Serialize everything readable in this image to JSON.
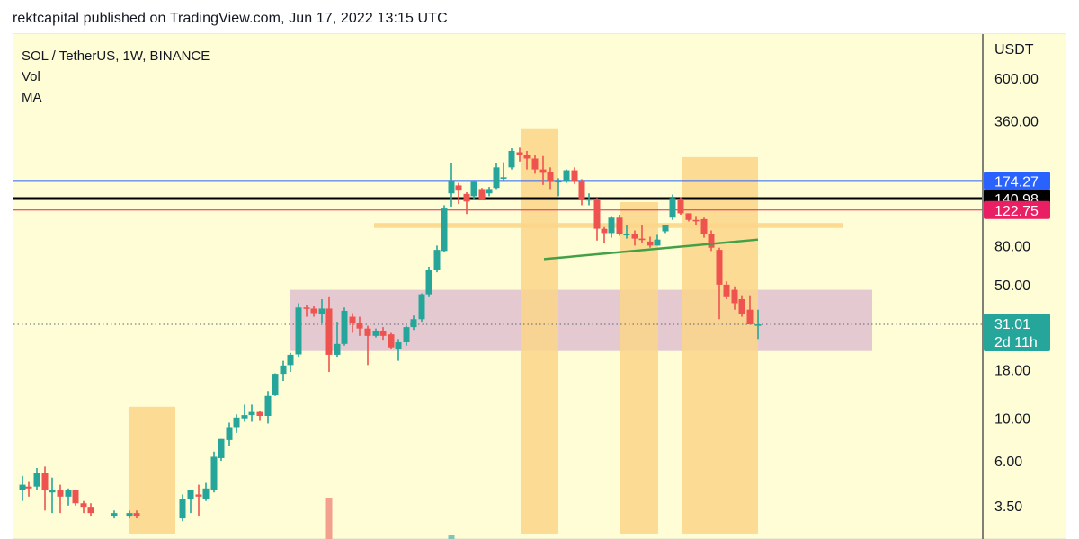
{
  "header": {
    "published": "rektcapital published on TradingView.com, Jun 17, 2022 13:15 UTC"
  },
  "legend": {
    "symbol": "SOL / TetherUS, 1W, BINANCE",
    "indicators": [
      "Vol",
      "MA"
    ]
  },
  "price_axis": {
    "currency": "USDT",
    "ticks": [
      {
        "label": "600.00",
        "value": 600
      },
      {
        "label": "360.00",
        "value": 360
      },
      {
        "label": "80.00",
        "value": 80
      },
      {
        "label": "50.00",
        "value": 50
      },
      {
        "label": "18.00",
        "value": 18
      },
      {
        "label": "10.00",
        "value": 10
      },
      {
        "label": "6.00",
        "value": 6
      },
      {
        "label": "3.50",
        "value": 3.5
      }
    ],
    "badges": [
      {
        "label": "174.27",
        "value": 174.27,
        "color": "#2962ff"
      },
      {
        "label": "140.98",
        "value": 140.98,
        "color": "#000000"
      },
      {
        "label": "122.75",
        "value": 122.75,
        "color": "#e91e63"
      }
    ],
    "last_price": {
      "label": "31.01",
      "countdown": "2d 11h",
      "value": 31.01,
      "color": "#26a69a"
    }
  },
  "colors": {
    "up": "#26a69a",
    "down": "#ef5350",
    "background": "#fffdd5",
    "highlight_zone": "#fcd68a",
    "range_zone": "#e0c0d0",
    "trendline": "#43a047"
  },
  "chart_data": {
    "type": "candlestick",
    "title": "SOL / TetherUS, 1W, BINANCE",
    "ylabel": "USDT",
    "yscale": "log",
    "ylim": [
      3.0,
      900
    ],
    "grid": false,
    "horizontal_lines": [
      {
        "value": 174.27,
        "color": "#2962ff",
        "width": 2
      },
      {
        "value": 140.98,
        "color": "#000000",
        "width": 3
      },
      {
        "value": 122.75,
        "color": "#e91e63",
        "width": 1
      }
    ],
    "zones": [
      {
        "type": "range",
        "x0": 323,
        "x1": 970,
        "top": 47,
        "bottom": 22.5,
        "color": "#e0c0d0"
      },
      {
        "type": "band",
        "x0": 416,
        "x1": 937,
        "top": 105,
        "bottom": 99,
        "color": "#fcd68a"
      },
      {
        "type": "highlight",
        "x0": 144,
        "x1": 195,
        "top": 11.5,
        "bottom": 2.5
      },
      {
        "type": "highlight",
        "x0": 579,
        "x1": 621,
        "top": 325,
        "bottom": 2.5
      },
      {
        "type": "highlight",
        "x0": 689,
        "x1": 732,
        "top": 135,
        "bottom": 2.5
      },
      {
        "type": "highlight",
        "x0": 758,
        "x1": 843,
        "top": 232,
        "bottom": 2.5
      }
    ],
    "trendline": {
      "x0": 605,
      "p0": 68,
      "x1": 843,
      "p1": 86,
      "color": "#43a047"
    },
    "last_price_line": 31.01,
    "candles": [
      {
        "x": 25,
        "o": 4.2,
        "h": 5.0,
        "l": 3.7,
        "c": 4.5
      },
      {
        "x": 32,
        "o": 4.4,
        "h": 4.7,
        "l": 3.9,
        "c": 4.3
      },
      {
        "x": 41,
        "o": 4.4,
        "h": 5.5,
        "l": 4.2,
        "c": 5.2
      },
      {
        "x": 50,
        "o": 5.2,
        "h": 5.6,
        "l": 3.3,
        "c": 4.2
      },
      {
        "x": 58,
        "o": 4.1,
        "h": 4.9,
        "l": 3.2,
        "c": 4.2
      },
      {
        "x": 67,
        "o": 4.2,
        "h": 4.5,
        "l": 3.2,
        "c": 3.9
      },
      {
        "x": 76,
        "o": 3.9,
        "h": 4.3,
        "l": 3.5,
        "c": 4.2
      },
      {
        "x": 84,
        "o": 4.2,
        "h": 4.2,
        "l": 3.5,
        "c": 3.6
      },
      {
        "x": 93,
        "o": 3.6,
        "h": 3.7,
        "l": 3.2,
        "c": 3.45
      },
      {
        "x": 101,
        "o": 3.45,
        "h": 3.6,
        "l": 3.1,
        "c": 3.2
      },
      {
        "x": 127,
        "o": 3.1,
        "h": 3.3,
        "l": 3.0,
        "c": 3.2
      },
      {
        "x": 144,
        "o": 3.1,
        "h": 3.3,
        "l": 3.0,
        "c": 3.2
      },
      {
        "x": 152,
        "o": 3.2,
        "h": 3.3,
        "l": 3.0,
        "c": 3.1
      },
      {
        "x": 203,
        "o": 3.0,
        "h": 4.0,
        "l": 2.9,
        "c": 3.8
      },
      {
        "x": 212,
        "o": 3.8,
        "h": 4.2,
        "l": 3.2,
        "c": 4.2
      },
      {
        "x": 221,
        "o": 4.0,
        "h": 4.5,
        "l": 3.1,
        "c": 3.9
      },
      {
        "x": 229,
        "o": 3.8,
        "h": 4.6,
        "l": 3.7,
        "c": 4.3
      },
      {
        "x": 238,
        "o": 4.2,
        "h": 6.7,
        "l": 4.1,
        "c": 6.3
      },
      {
        "x": 246,
        "o": 6.2,
        "h": 7.8,
        "l": 6.0,
        "c": 7.8
      },
      {
        "x": 255,
        "o": 7.7,
        "h": 9.5,
        "l": 7.2,
        "c": 9.0
      },
      {
        "x": 263,
        "o": 9.0,
        "h": 10.5,
        "l": 8.4,
        "c": 10.1
      },
      {
        "x": 272,
        "o": 10.0,
        "h": 11.8,
        "l": 9.6,
        "c": 10.4
      },
      {
        "x": 280,
        "o": 10.4,
        "h": 11.8,
        "l": 9.6,
        "c": 10.8
      },
      {
        "x": 289,
        "o": 10.8,
        "h": 11.0,
        "l": 9.7,
        "c": 10.3
      },
      {
        "x": 298,
        "o": 10.3,
        "h": 13.9,
        "l": 9.4,
        "c": 13.1
      },
      {
        "x": 306,
        "o": 13.2,
        "h": 17.2,
        "l": 13.1,
        "c": 17.1
      },
      {
        "x": 315,
        "o": 17.1,
        "h": 20.0,
        "l": 15.7,
        "c": 18.9
      },
      {
        "x": 323,
        "o": 19.0,
        "h": 22.0,
        "l": 17.5,
        "c": 21.5
      },
      {
        "x": 332,
        "o": 21.6,
        "h": 40.0,
        "l": 21.0,
        "c": 38.0
      },
      {
        "x": 341,
        "o": 38.0,
        "h": 39.0,
        "l": 34.0,
        "c": 37.5
      },
      {
        "x": 349,
        "o": 37.5,
        "h": 38.5,
        "l": 34.0,
        "c": 35.5
      },
      {
        "x": 358,
        "o": 35.0,
        "h": 42.0,
        "l": 31.5,
        "c": 37.5
      },
      {
        "x": 366,
        "o": 37.5,
        "h": 43.0,
        "l": 17.5,
        "c": 21.5
      },
      {
        "x": 375,
        "o": 21.5,
        "h": 32.0,
        "l": 21.0,
        "c": 24.5
      },
      {
        "x": 383,
        "o": 24.5,
        "h": 38.0,
        "l": 24.0,
        "c": 36.5
      },
      {
        "x": 392,
        "o": 34.0,
        "h": 35.5,
        "l": 28.0,
        "c": 31.5
      },
      {
        "x": 400,
        "o": 31.5,
        "h": 34.0,
        "l": 27.0,
        "c": 29.5
      },
      {
        "x": 409,
        "o": 29.5,
        "h": 30.5,
        "l": 19.0,
        "c": 27.0
      },
      {
        "x": 418,
        "o": 27.0,
        "h": 29.5,
        "l": 26.5,
        "c": 28.5
      },
      {
        "x": 426,
        "o": 28.5,
        "h": 30.0,
        "l": 25.5,
        "c": 27.0
      },
      {
        "x": 435,
        "o": 27.5,
        "h": 28.0,
        "l": 23.0,
        "c": 23.5
      },
      {
        "x": 443,
        "o": 23.0,
        "h": 26.0,
        "l": 20.0,
        "c": 25.0
      },
      {
        "x": 452,
        "o": 25.0,
        "h": 30.5,
        "l": 24.0,
        "c": 30.0
      },
      {
        "x": 460,
        "o": 30.0,
        "h": 34.5,
        "l": 29.0,
        "c": 33.0
      },
      {
        "x": 469,
        "o": 33.0,
        "h": 45.0,
        "l": 32.0,
        "c": 44.5
      },
      {
        "x": 477,
        "o": 44.5,
        "h": 62.0,
        "l": 43.0,
        "c": 60.0
      },
      {
        "x": 486,
        "o": 60.0,
        "h": 80.0,
        "l": 58.0,
        "c": 76.0
      },
      {
        "x": 494,
        "o": 75.0,
        "h": 130.0,
        "l": 74.0,
        "c": 125.0
      },
      {
        "x": 502,
        "o": 150.0,
        "h": 216.0,
        "l": 128.0,
        "c": 175.0
      },
      {
        "x": 510,
        "o": 165.0,
        "h": 170.0,
        "l": 132.0,
        "c": 155.0
      },
      {
        "x": 519,
        "o": 149.0,
        "h": 152.0,
        "l": 117.0,
        "c": 136.0
      },
      {
        "x": 527,
        "o": 145.0,
        "h": 172.0,
        "l": 138.0,
        "c": 172.0
      },
      {
        "x": 536,
        "o": 158.0,
        "h": 160.0,
        "l": 138.0,
        "c": 140.0
      },
      {
        "x": 544,
        "o": 150.0,
        "h": 162.0,
        "l": 145.0,
        "c": 158.0
      },
      {
        "x": 552,
        "o": 160.0,
        "h": 215.0,
        "l": 158.0,
        "c": 205.0
      },
      {
        "x": 560,
        "o": 182.0,
        "h": 218.0,
        "l": 175.0,
        "c": 182.0
      },
      {
        "x": 569,
        "o": 205.0,
        "h": 258.0,
        "l": 200.0,
        "c": 250.0
      },
      {
        "x": 578,
        "o": 246.0,
        "h": 260.0,
        "l": 220.0,
        "c": 238.0
      },
      {
        "x": 586,
        "o": 238.0,
        "h": 250.0,
        "l": 200.0,
        "c": 228.0
      },
      {
        "x": 595,
        "o": 228.0,
        "h": 237.0,
        "l": 190.0,
        "c": 200.0
      },
      {
        "x": 604,
        "o": 200.0,
        "h": 235.0,
        "l": 166.0,
        "c": 192.0
      },
      {
        "x": 612,
        "o": 195.0,
        "h": 205.0,
        "l": 158.0,
        "c": 172.0
      },
      {
        "x": 621,
        "o": 172.0,
        "h": 180.0,
        "l": 145.0,
        "c": 174.0
      },
      {
        "x": 630,
        "o": 175.0,
        "h": 200.0,
        "l": 170.0,
        "c": 198.0
      },
      {
        "x": 639,
        "o": 198.0,
        "h": 205.0,
        "l": 168.0,
        "c": 175.0
      },
      {
        "x": 647,
        "o": 175.0,
        "h": 178.0,
        "l": 130.0,
        "c": 138.0
      },
      {
        "x": 655,
        "o": 138.0,
        "h": 150.0,
        "l": 130.0,
        "c": 140.0
      },
      {
        "x": 664,
        "o": 140.0,
        "h": 142.0,
        "l": 85.0,
        "c": 98.0
      },
      {
        "x": 672,
        "o": 98.0,
        "h": 100.0,
        "l": 82.0,
        "c": 93.0
      },
      {
        "x": 680,
        "o": 93.0,
        "h": 113.0,
        "l": 88.0,
        "c": 112.0
      },
      {
        "x": 689,
        "o": 112.0,
        "h": 116.0,
        "l": 90.0,
        "c": 92.0
      },
      {
        "x": 697,
        "o": 92.0,
        "h": 102.0,
        "l": 87.0,
        "c": 92.0
      },
      {
        "x": 706,
        "o": 92.0,
        "h": 96.0,
        "l": 80.0,
        "c": 87.0
      },
      {
        "x": 714,
        "o": 87.0,
        "h": 102.0,
        "l": 83.0,
        "c": 86.0
      },
      {
        "x": 723,
        "o": 84.0,
        "h": 89.0,
        "l": 78.0,
        "c": 80.0
      },
      {
        "x": 731,
        "o": 80.0,
        "h": 91.0,
        "l": 80.0,
        "c": 86.0
      },
      {
        "x": 740,
        "o": 95.0,
        "h": 102.0,
        "l": 93.0,
        "c": 102.0
      },
      {
        "x": 748,
        "o": 112.0,
        "h": 148.0,
        "l": 109.0,
        "c": 142.0
      },
      {
        "x": 757,
        "o": 141.0,
        "h": 143.0,
        "l": 116.0,
        "c": 118.0
      },
      {
        "x": 766,
        "o": 118.0,
        "h": 118.0,
        "l": 107.0,
        "c": 109.0
      },
      {
        "x": 774,
        "o": 109.0,
        "h": 113.0,
        "l": 103.0,
        "c": 108.0
      },
      {
        "x": 783,
        "o": 110.0,
        "h": 112.0,
        "l": 88.0,
        "c": 92.0
      },
      {
        "x": 791,
        "o": 92.0,
        "h": 96.0,
        "l": 75.0,
        "c": 78.0
      },
      {
        "x": 800,
        "o": 76.0,
        "h": 78.0,
        "l": 33.0,
        "c": 50.0
      },
      {
        "x": 808,
        "o": 50.0,
        "h": 52.0,
        "l": 42.0,
        "c": 43.0
      },
      {
        "x": 817,
        "o": 47.0,
        "h": 49.0,
        "l": 37.0,
        "c": 40.0
      },
      {
        "x": 825,
        "o": 42.0,
        "h": 44.0,
        "l": 34.0,
        "c": 35.0
      },
      {
        "x": 834,
        "o": 37.0,
        "h": 44.0,
        "l": 31.0,
        "c": 31.0
      },
      {
        "x": 843,
        "o": 31.0,
        "h": 37.0,
        "l": 26.0,
        "c": 31.01
      }
    ],
    "volume_bars": [
      {
        "x": 366,
        "height": 46,
        "color": "#f3a08e"
      },
      {
        "x": 502,
        "height": 4,
        "color": "#7fc6b8"
      }
    ]
  }
}
